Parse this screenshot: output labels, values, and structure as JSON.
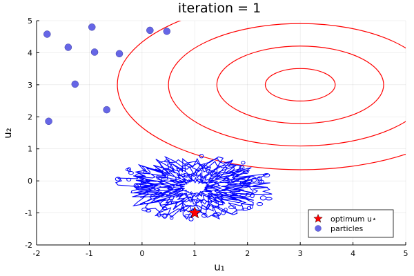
{
  "chart_data": {
    "type": "scatter",
    "title": "iteration = 1",
    "xlabel": "u₁",
    "ylabel": "u₂",
    "xlim": [
      -2,
      5
    ],
    "ylim": [
      -2,
      5
    ],
    "x_ticks": [
      "-2",
      "-1",
      "0",
      "1",
      "2",
      "3",
      "4",
      "5"
    ],
    "y_ticks": [
      "-2",
      "-1",
      "0",
      "1",
      "2",
      "3",
      "4",
      "5"
    ],
    "grid": true,
    "legend_position": "bottom-right",
    "series": [
      {
        "name": "optimum u⋆",
        "marker": "star",
        "color": "#ff0000",
        "x": [
          1.0
        ],
        "y": [
          -1.0
        ]
      },
      {
        "name": "particles",
        "marker": "circle",
        "color": "#6666e6",
        "x": [
          -1.8,
          -0.95,
          -1.4,
          -0.9,
          -0.43,
          0.15,
          0.47,
          -1.27,
          -0.67,
          -1.77
        ],
        "y": [
          4.58,
          4.8,
          4.17,
          4.02,
          3.97,
          4.7,
          4.67,
          3.02,
          2.22,
          1.86
        ]
      }
    ],
    "objective_contours": {
      "color": "#ff0000",
      "center": [
        3.0,
        3.0
      ],
      "radii": [
        0.65,
        1.55,
        2.45,
        3.4
      ]
    },
    "density_contours": {
      "color": "#0000ff",
      "center": [
        1.0,
        -0.2
      ],
      "spread": [
        1.05,
        0.72
      ]
    }
  }
}
